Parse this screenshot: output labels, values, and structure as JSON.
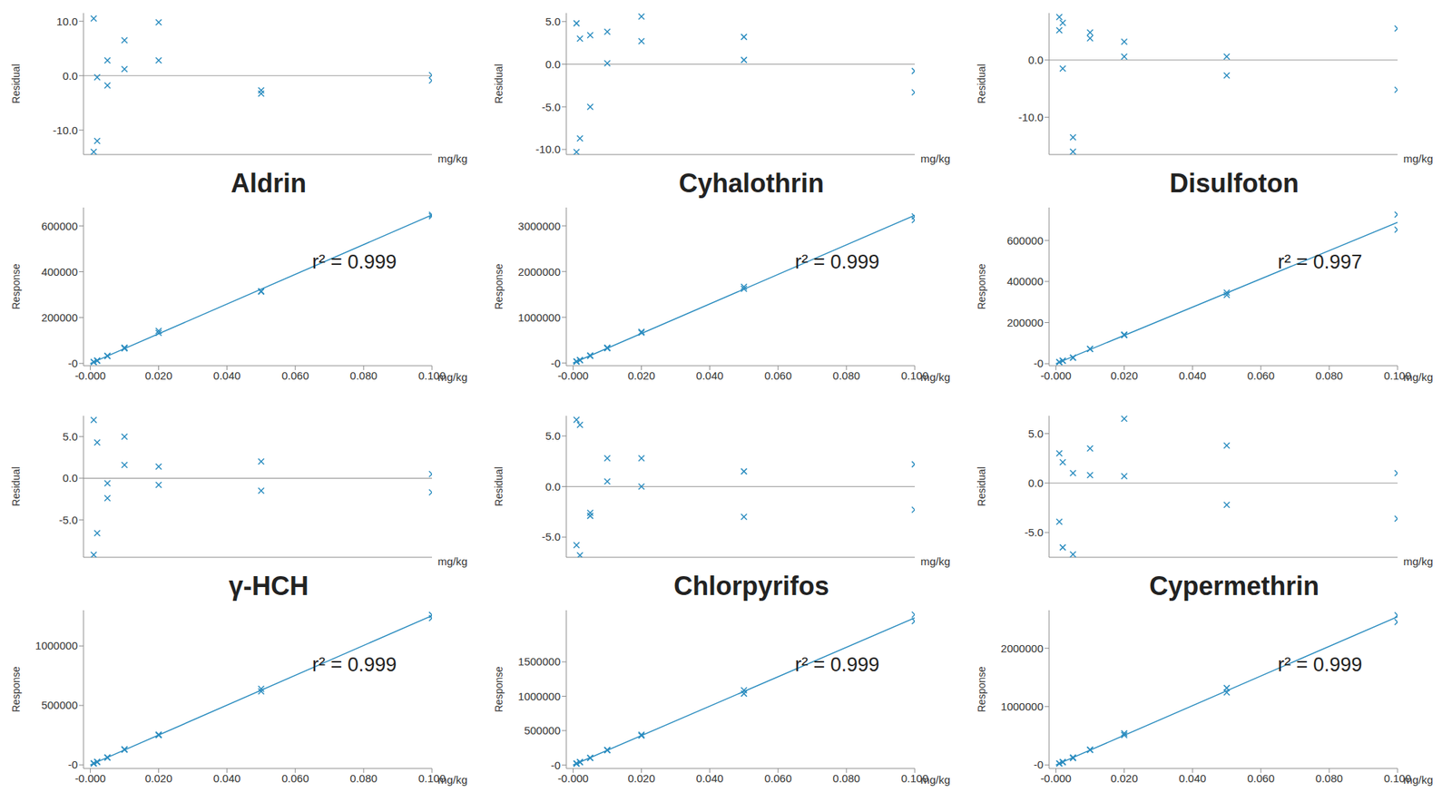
{
  "chart_data": [
    {
      "type": "scatter",
      "y_label": "Residual",
      "x_label": "mg/kg",
      "color": "#2a8cbf",
      "marker": "x",
      "tick_labels": "y",
      "baseline": 0,
      "xlim": [
        -0.002,
        0.1
      ],
      "ylim": [
        -14.5,
        11.5
      ],
      "yticks": [
        {
          "value": -10,
          "label": "-10.0"
        },
        {
          "value": 0,
          "label": "0.0"
        },
        {
          "value": 10,
          "label": "10.0"
        }
      ],
      "x": [
        0.001,
        0.001,
        0.002,
        0.002,
        0.005,
        0.005,
        0.01,
        0.01,
        0.02,
        0.02,
        0.05,
        0.05,
        0.1,
        0.1
      ],
      "values": [
        10.5,
        -14,
        -0.3,
        -12,
        2.8,
        -1.8,
        6.5,
        1.2,
        9.8,
        2.8,
        -2.7,
        -3.3,
        0.1,
        -0.9
      ]
    },
    {
      "type": "scatter",
      "title": "Aldrin",
      "y_label": "Response",
      "x_label": "mg/kg",
      "color": "#2a8cbf",
      "marker": "x",
      "annotations": [
        "r² = 0.999"
      ],
      "xlim": [
        -0.002,
        0.1
      ],
      "xticks": [
        {
          "value": 0,
          "label": "-0.000"
        },
        {
          "value": 0.02,
          "label": "0.020"
        },
        {
          "value": 0.04,
          "label": "0.040"
        },
        {
          "value": 0.06,
          "label": "0.060"
        },
        {
          "value": 0.08,
          "label": "0.080"
        },
        {
          "value": 0.1,
          "label": "0.100"
        }
      ],
      "ylim": [
        -10000,
        680000
      ],
      "yticks": [
        {
          "value": 0,
          "label": "-0"
        },
        200000,
        400000,
        600000
      ],
      "x": [
        0.001,
        0.001,
        0.002,
        0.002,
        0.005,
        0.005,
        0.01,
        0.01,
        0.02,
        0.02,
        0.05,
        0.05,
        0.1,
        0.1
      ],
      "values": [
        6800,
        5600,
        13000,
        11400,
        33300,
        31800,
        69000,
        65600,
        142000,
        133500,
        315000,
        313000,
        648500,
        642000
      ],
      "fit": {
        "x": [
          0,
          0.1
        ],
        "values": [
          0,
          648000
        ]
      }
    },
    {
      "type": "scatter",
      "y_label": "Residual",
      "x_label": "mg/kg",
      "color": "#2a8cbf",
      "marker": "x",
      "tick_labels": "y",
      "baseline": 0,
      "xlim": [
        -0.002,
        0.1
      ],
      "ylim": [
        -10.6,
        6
      ],
      "yticks": [
        {
          "value": -10,
          "label": "-10.0"
        },
        {
          "value": -5,
          "label": "-5.0"
        },
        {
          "value": 0,
          "label": "0.0"
        },
        {
          "value": 5,
          "label": "5.0"
        }
      ],
      "x": [
        0.001,
        0.001,
        0.002,
        0.002,
        0.005,
        0.005,
        0.01,
        0.01,
        0.02,
        0.02,
        0.05,
        0.05,
        0.1,
        0.1
      ],
      "values": [
        4.8,
        -10.3,
        3.0,
        -8.7,
        3.4,
        -5.0,
        3.8,
        0.1,
        5.6,
        2.7,
        3.2,
        0.5,
        -0.8,
        -3.3
      ]
    },
    {
      "type": "scatter",
      "title": "Cyhalothrin",
      "y_label": "Response",
      "x_label": "mg/kg",
      "color": "#2a8cbf",
      "marker": "x",
      "annotations": [
        "r² = 0.999"
      ],
      "xlim": [
        -0.002,
        0.1
      ],
      "xticks": [
        {
          "value": 0,
          "label": "-0.000"
        },
        {
          "value": 0.02,
          "label": "0.020"
        },
        {
          "value": 0.04,
          "label": "0.040"
        },
        {
          "value": 0.06,
          "label": "0.060"
        },
        {
          "value": 0.08,
          "label": "0.080"
        },
        {
          "value": 0.1,
          "label": "0.100"
        }
      ],
      "ylim": [
        -60000,
        3400000
      ],
      "yticks": [
        {
          "value": 0,
          "label": "-0"
        },
        1000000,
        2000000,
        3000000
      ],
      "x": [
        0.001,
        0.001,
        0.002,
        0.002,
        0.005,
        0.005,
        0.01,
        0.01,
        0.02,
        0.02,
        0.05,
        0.05,
        0.1,
        0.1
      ],
      "values": [
        33800,
        29500,
        66400,
        59000,
        167000,
        153500,
        335000,
        323000,
        682000,
        663000,
        1665000,
        1623000,
        3205000,
        3125000
      ],
      "fit": {
        "x": [
          0,
          0.1
        ],
        "values": [
          0,
          3230000
        ]
      }
    },
    {
      "type": "scatter",
      "y_label": "Residual",
      "x_label": "mg/kg",
      "color": "#2a8cbf",
      "marker": "x",
      "tick_labels": "y",
      "baseline": 0,
      "xlim": [
        -0.002,
        0.1
      ],
      "ylim": [
        -16.5,
        8.2
      ],
      "yticks": [
        {
          "value": -10,
          "label": "-10.0"
        },
        {
          "value": 0,
          "label": "0.0"
        }
      ],
      "x": [
        0.001,
        0.001,
        0.002,
        0.002,
        0.005,
        0.005,
        0.01,
        0.01,
        0.02,
        0.02,
        0.05,
        0.05,
        0.1,
        0.1
      ],
      "values": [
        7.5,
        5.2,
        6.5,
        -1.5,
        -13.5,
        -16,
        4.8,
        3.8,
        3.2,
        0.6,
        0.6,
        -2.7,
        5.5,
        -5.2
      ]
    },
    {
      "type": "scatter",
      "title": "Disulfoton",
      "y_label": "Response",
      "x_label": "mg/kg",
      "color": "#2a8cbf",
      "marker": "x",
      "annotations": [
        "r² = 0.997"
      ],
      "xlim": [
        -0.002,
        0.1
      ],
      "xticks": [
        {
          "value": 0,
          "label": "-0.000"
        },
        {
          "value": 0.02,
          "label": "0.020"
        },
        {
          "value": 0.04,
          "label": "0.040"
        },
        {
          "value": 0.06,
          "label": "0.060"
        },
        {
          "value": 0.08,
          "label": "0.080"
        },
        {
          "value": 0.1,
          "label": "0.100"
        }
      ],
      "ylim": [
        -10000,
        760000
      ],
      "yticks": [
        {
          "value": 0,
          "label": "-0"
        },
        200000,
        400000,
        600000
      ],
      "x": [
        0.001,
        0.001,
        0.002,
        0.002,
        0.005,
        0.005,
        0.01,
        0.01,
        0.02,
        0.02,
        0.05,
        0.05,
        0.1,
        0.1
      ],
      "values": [
        7400,
        7330,
        14500,
        13600,
        29800,
        28900,
        72100,
        71400,
        142000,
        138400,
        346000,
        334600,
        725800,
        652000
      ],
      "fit": {
        "x": [
          0,
          0.1
        ],
        "values": [
          0,
          688000
        ]
      }
    },
    {
      "type": "scatter",
      "y_label": "Residual",
      "x_label": "mg/kg",
      "color": "#2a8cbf",
      "marker": "x",
      "tick_labels": "y",
      "baseline": 0,
      "xlim": [
        -0.002,
        0.1
      ],
      "ylim": [
        -9.5,
        7.5
      ],
      "yticks": [
        {
          "value": -5,
          "label": "-5.0"
        },
        {
          "value": 0,
          "label": "0.0"
        },
        {
          "value": 5,
          "label": "5.0"
        }
      ],
      "x": [
        0.001,
        0.001,
        0.002,
        0.002,
        0.005,
        0.005,
        0.01,
        0.01,
        0.02,
        0.02,
        0.05,
        0.05,
        0.1,
        0.1
      ],
      "values": [
        7.0,
        -9.2,
        4.3,
        -6.6,
        -0.6,
        -2.4,
        5.0,
        1.6,
        1.4,
        -0.8,
        2.0,
        -1.5,
        0.5,
        -1.7
      ]
    },
    {
      "type": "scatter",
      "title": "γ-HCH",
      "y_label": "Response",
      "x_label": "mg/kg",
      "color": "#2a8cbf",
      "marker": "x",
      "annotations": [
        "r² = 0.999"
      ],
      "xlim": [
        -0.002,
        0.1
      ],
      "xticks": [
        {
          "value": 0,
          "label": "-0.000"
        },
        {
          "value": 0.02,
          "label": "0.020"
        },
        {
          "value": 0.04,
          "label": "0.040"
        },
        {
          "value": 0.06,
          "label": "0.060"
        },
        {
          "value": 0.08,
          "label": "0.080"
        },
        {
          "value": 0.1,
          "label": "0.100"
        }
      ],
      "ylim": [
        -30000,
        1300000
      ],
      "yticks": [
        {
          "value": 0,
          "label": "-0"
        },
        500000,
        1000000
      ],
      "x": [
        0.001,
        0.001,
        0.002,
        0.002,
        0.005,
        0.005,
        0.01,
        0.01,
        0.02,
        0.02,
        0.05,
        0.05,
        0.1,
        0.1
      ],
      "values": [
        13400,
        11400,
        26200,
        23400,
        62400,
        61200,
        131800,
        127500,
        254500,
        249000,
        640000,
        618000,
        1261000,
        1234000
      ],
      "fit": {
        "x": [
          0,
          0.1
        ],
        "values": [
          0,
          1255000
        ]
      }
    },
    {
      "type": "scatter",
      "y_label": "Residual",
      "x_label": "mg/kg",
      "color": "#2a8cbf",
      "marker": "x",
      "tick_labels": "y",
      "baseline": 0,
      "xlim": [
        -0.002,
        0.1
      ],
      "ylim": [
        -7,
        7
      ],
      "yticks": [
        {
          "value": -5,
          "label": "-5.0"
        },
        {
          "value": 0,
          "label": "0.0"
        },
        {
          "value": 5,
          "label": "5.0"
        }
      ],
      "x": [
        0.001,
        0.001,
        0.002,
        0.002,
        0.005,
        0.005,
        0.01,
        0.01,
        0.02,
        0.02,
        0.05,
        0.05,
        0.1,
        0.1
      ],
      "values": [
        6.6,
        -5.8,
        6.1,
        -6.8,
        -2.6,
        -2.9,
        2.8,
        0.5,
        2.8,
        0.0,
        1.5,
        -3.0,
        2.2,
        -2.3
      ]
    },
    {
      "type": "scatter",
      "title": "Chlorpyrifos",
      "y_label": "Response",
      "x_label": "mg/kg",
      "color": "#2a8cbf",
      "marker": "x",
      "annotations": [
        "r² = 0.999"
      ],
      "xlim": [
        -0.002,
        0.1
      ],
      "xticks": [
        {
          "value": 0,
          "label": "-0.000"
        },
        {
          "value": 0.02,
          "label": "0.020"
        },
        {
          "value": 0.04,
          "label": "0.040"
        },
        {
          "value": 0.06,
          "label": "0.060"
        },
        {
          "value": 0.08,
          "label": "0.080"
        },
        {
          "value": 0.1,
          "label": "0.100"
        }
      ],
      "ylim": [
        -50000,
        2250000
      ],
      "yticks": [
        {
          "value": 0,
          "label": "-0"
        },
        500000,
        1000000,
        1500000
      ],
      "x": [
        0.001,
        0.001,
        0.002,
        0.002,
        0.005,
        0.005,
        0.01,
        0.01,
        0.02,
        0.02,
        0.05,
        0.05,
        0.1,
        0.1
      ],
      "values": [
        22800,
        20200,
        45600,
        39900,
        104200,
        103900,
        220000,
        215000,
        440000,
        428000,
        1086000,
        1038000,
        2187000,
        2091000
      ],
      "fit": {
        "x": [
          0,
          0.1
        ],
        "values": [
          0,
          2140000
        ]
      }
    },
    {
      "type": "scatter",
      "y_label": "Residual",
      "x_label": "mg/kg",
      "color": "#2a8cbf",
      "marker": "x",
      "tick_labels": "y",
      "baseline": 0,
      "xlim": [
        -0.002,
        0.1
      ],
      "ylim": [
        -7.5,
        6.8
      ],
      "yticks": [
        {
          "value": -5,
          "label": "-5.0"
        },
        {
          "value": 0,
          "label": "0.0"
        },
        {
          "value": 5,
          "label": "5.0"
        }
      ],
      "x": [
        0.001,
        0.001,
        0.002,
        0.002,
        0.005,
        0.005,
        0.01,
        0.01,
        0.02,
        0.02,
        0.05,
        0.05,
        0.1,
        0.1
      ],
      "values": [
        3.0,
        -3.9,
        2.1,
        -6.5,
        1.0,
        -7.2,
        3.5,
        0.8,
        6.5,
        0.7,
        3.8,
        -2.2,
        1.0,
        -3.6
      ]
    },
    {
      "type": "scatter",
      "title": "Cypermethrin",
      "y_label": "Response",
      "x_label": "mg/kg",
      "color": "#2a8cbf",
      "marker": "x",
      "annotations": [
        "r² = 0.999"
      ],
      "xlim": [
        -0.002,
        0.1
      ],
      "xticks": [
        {
          "value": 0,
          "label": "-0.000"
        },
        {
          "value": 0.02,
          "label": "0.020"
        },
        {
          "value": 0.04,
          "label": "0.040"
        },
        {
          "value": 0.06,
          "label": "0.060"
        },
        {
          "value": 0.08,
          "label": "0.080"
        },
        {
          "value": 0.1,
          "label": "0.100"
        }
      ],
      "ylim": [
        -60000,
        2650000
      ],
      "yticks": [
        {
          "value": 0,
          "label": "-0"
        },
        1000000,
        2000000
      ],
      "x": [
        0.001,
        0.001,
        0.002,
        0.002,
        0.005,
        0.005,
        0.01,
        0.01,
        0.02,
        0.02,
        0.05,
        0.05,
        0.1,
        0.1
      ],
      "values": [
        26200,
        24400,
        51900,
        47500,
        128300,
        117900,
        262900,
        256000,
        541000,
        511600,
        1318000,
        1242000,
        2565000,
        2449000
      ],
      "fit": {
        "x": [
          0,
          0.1
        ],
        "values": [
          0,
          2540000
        ]
      }
    }
  ]
}
